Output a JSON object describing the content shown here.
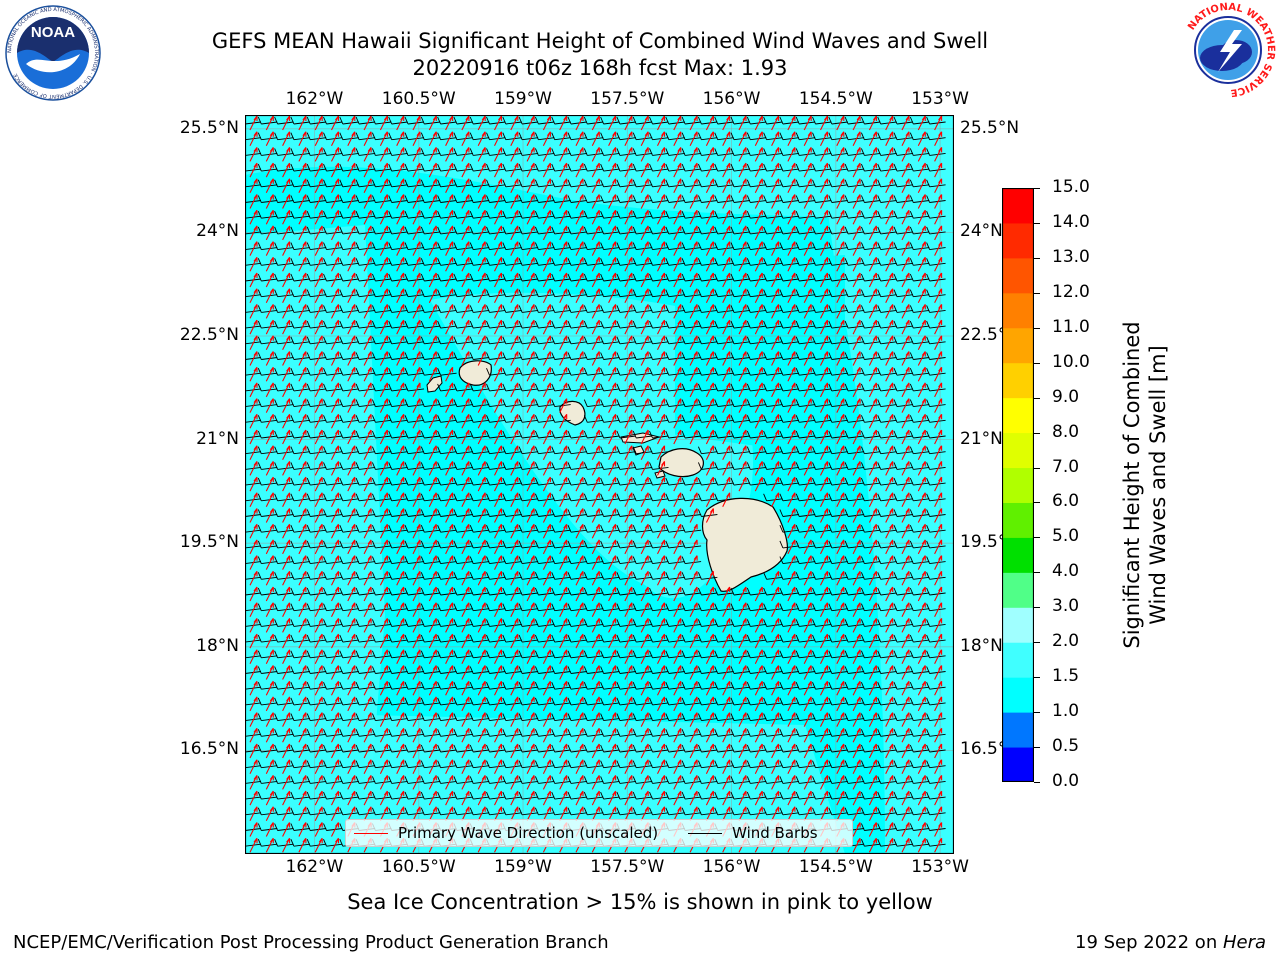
{
  "title": {
    "line1": "GEFS MEAN Hawaii Significant Height of Combined Wind Waves and Swell",
    "line2": "20220916 t06z 168h fcst   Max: 1.93"
  },
  "logos": {
    "noaa_text": "NOAA",
    "noaa_ring_text": "NATIONAL OCEANIC AND ATMOSPHERIC ADMINISTRATION · U.S. DEPARTMENT OF COMMERCE",
    "nws_ring_text": "NATIONAL WEATHER SERVICE"
  },
  "map": {
    "lon_ticks": [
      "162°W",
      "160.5°W",
      "159°W",
      "157.5°W",
      "156°W",
      "154.5°W",
      "153°W"
    ],
    "lat_ticks": [
      "25.5°N",
      "24°N",
      "22.5°N",
      "21°N",
      "19.5°N",
      "18°N",
      "16.5°N"
    ],
    "lon_values": [
      -162,
      -160.5,
      -159,
      -157.5,
      -156,
      -154.5,
      -153
    ],
    "lat_values": [
      25.5,
      24,
      22.5,
      21,
      19.5,
      18,
      16.5
    ],
    "lon_range": [
      -163,
      -152.8
    ],
    "lat_range": [
      15.0,
      25.7
    ],
    "gridlines": true,
    "ocean_color": "#00ffff",
    "land_color": "#f0ebd8",
    "wave_arrow_color": "#ff0000",
    "barb_color": "#000000"
  },
  "legend": {
    "wave": "Primary Wave Direction (unscaled)",
    "barbs": "Wind Barbs",
    "placement": "bottom-center"
  },
  "colorbar": {
    "label_line1": "Significant Height of Combined",
    "label_line2": "Wind Waves and Swell [m]",
    "ticks": [
      "15.0",
      "14.0",
      "13.0",
      "12.0",
      "11.0",
      "10.0",
      "9.0",
      "8.0",
      "7.0",
      "6.0",
      "5.0",
      "4.0",
      "3.0",
      "2.0",
      "1.5",
      "1.0",
      "0.5",
      "0.0"
    ],
    "levels": [
      0.0,
      0.5,
      1.0,
      1.5,
      2.0,
      3.0,
      4.0,
      5.0,
      6.0,
      7.0,
      8.0,
      9.0,
      10.0,
      11.0,
      12.0,
      13.0,
      14.0,
      15.0
    ],
    "colors": [
      "#0000ff",
      "#0077ff",
      "#00ffff",
      "#40ffff",
      "#a0ffff",
      "#50ff88",
      "#00e000",
      "#60f000",
      "#b0ff00",
      "#e0ff00",
      "#ffff00",
      "#ffd000",
      "#ffa500",
      "#ff8000",
      "#ff5500",
      "#ff2a00",
      "#ff0000"
    ]
  },
  "note": "Sea Ice Concentration > 15% is shown in pink to yellow",
  "footer": {
    "left": "NCEP/EMC/Verification Post Processing Product Generation Branch",
    "right_date": "19 Sep 2022 on ",
    "right_host": "Hera"
  }
}
